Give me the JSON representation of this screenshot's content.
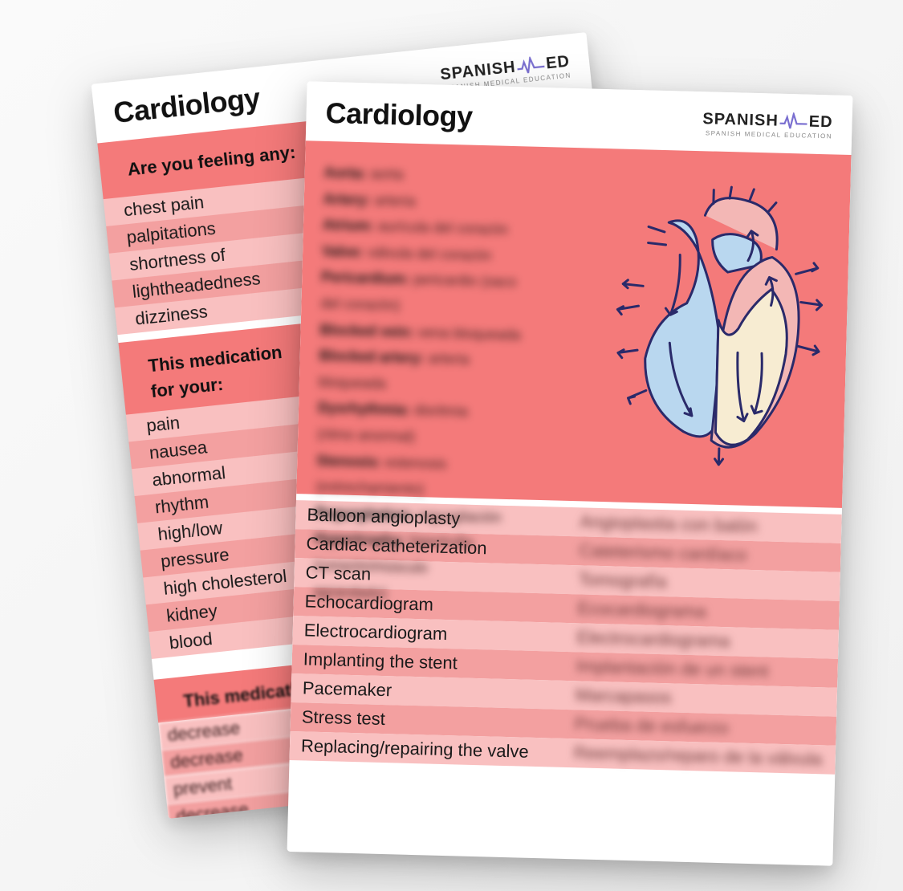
{
  "brand": {
    "main_left": "SPANISH",
    "main_right": "ED",
    "sub": "SPANISH MEDICAL EDUCATION",
    "ekg_color": "#7a6fd0"
  },
  "title": "Cardiology",
  "colors": {
    "coral": "#f47a7a",
    "coral_light": "#f9c0c0",
    "coral_mid": "#f3a0a0",
    "heart_outline": "#2a2a6a",
    "heart_blue": "#b9d7ef",
    "heart_pink": "#f3b7b5",
    "heart_cream": "#f7ecd2"
  },
  "back_card": {
    "section1_head": "Are you feeling any:",
    "section1_items": [
      "chest pain",
      "palpitations",
      "shortness of",
      "lightheadedness",
      "dizziness"
    ],
    "section2_head_a": "This medication",
    "section2_head_b": "for your:",
    "section2_items": [
      "pain",
      "nausea",
      "abnormal",
      "rhythm",
      "high/low",
      "pressure",
      "high cholesterol",
      "kidney",
      "blood"
    ],
    "section3_head": "This medication",
    "section3_items": [
      "decrease",
      "decrease",
      "prevent",
      "decrease"
    ]
  },
  "front_card": {
    "anatomy_lines": [
      {
        "term": "Aorta",
        "def": "aorta"
      },
      {
        "term": "Artery",
        "def": "arteria"
      },
      {
        "term": "Atrium",
        "def": "aurícula del corazón"
      },
      {
        "term": "Valve",
        "def": "válvula del corazón"
      },
      {
        "term": "Pericardium",
        "def": "pericardio (saco"
      },
      {
        "term": "",
        "def": "del corazón)"
      },
      {
        "term": "Blocked vein",
        "def": "vena bloqueada"
      },
      {
        "term": "Blocked artery",
        "def": "arteria"
      },
      {
        "term": "",
        "def": "bloqueada"
      },
      {
        "term": "Dysrhythmia",
        "def": "disritmia"
      },
      {
        "term": "",
        "def": "(ritmo anormal)"
      },
      {
        "term": "Stenosis",
        "def": "estenosis"
      },
      {
        "term": "",
        "def": "(estrechamiento)"
      },
      {
        "term": "Regurgitation",
        "def": "regurgitación"
      },
      {
        "term": "Hypertrophy",
        "def": "hipertrofia"
      },
      {
        "term": "",
        "def": "(corazón/músculo"
      },
      {
        "term": "",
        "def": "agrandado)"
      }
    ],
    "procedures": [
      {
        "en": "Balloon angioplasty",
        "es": "Angioplastia con balón"
      },
      {
        "en": "Cardiac catheterization",
        "es": "Cateterismo cardíaco"
      },
      {
        "en": "CT scan",
        "es": "Tomografía"
      },
      {
        "en": "Echocardiogram",
        "es": "Ecocardiograma"
      },
      {
        "en": "Electrocardiogram",
        "es": "Electrocardiograma"
      },
      {
        "en": "Implanting the stent",
        "es": "Implantación de un stent"
      },
      {
        "en": "Pacemaker",
        "es": "Marcapasos"
      },
      {
        "en": "Stress test",
        "es": "Prueba de esfuerzo"
      },
      {
        "en": "Replacing/repairing the valve",
        "es": "Reemplazo/reparo de la válvula"
      }
    ]
  }
}
